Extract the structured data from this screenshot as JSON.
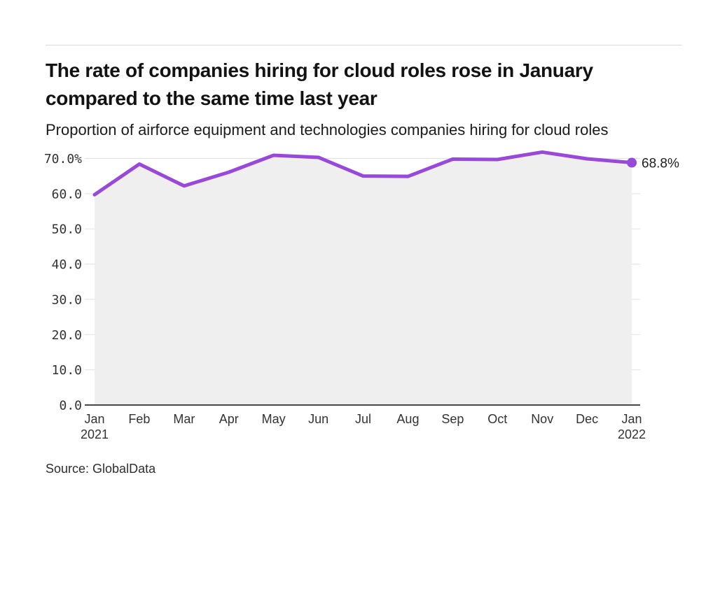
{
  "header": {
    "title": "The rate of companies hiring for cloud roles rose in January compared to the same time last year",
    "subtitle": "Proportion of airforce equipment and technologies companies hiring for cloud roles"
  },
  "footer": {
    "source": "Source: GlobalData"
  },
  "chart_data": {
    "type": "line",
    "title": "The rate of companies hiring for cloud roles rose in January compared to the same time last year",
    "subtitle": "Proportion of airforce equipment and technologies companies hiring for cloud roles",
    "categories": [
      "Jan",
      "Feb",
      "Mar",
      "Apr",
      "May",
      "Jun",
      "Jul",
      "Aug",
      "Sep",
      "Oct",
      "Nov",
      "Dec",
      "Jan"
    ],
    "category_year_labels": [
      {
        "index": 0,
        "year": "2021"
      },
      {
        "index": 12,
        "year": "2022"
      }
    ],
    "series": [
      {
        "name": "Proportion of companies hiring for cloud roles",
        "values": [
          59.7,
          68.4,
          62.2,
          66.1,
          70.9,
          70.3,
          65.0,
          64.9,
          69.8,
          69.7,
          71.8,
          69.9,
          68.8
        ]
      }
    ],
    "end_label": "68.8%",
    "ylim": [
      0,
      70
    ],
    "yticks": [
      0,
      10,
      20,
      30,
      40,
      50,
      60,
      70
    ],
    "ytick_labels": [
      "0.0",
      "10.0",
      "20.0",
      "30.0",
      "40.0",
      "50.0",
      "60.0",
      "70.0%"
    ],
    "xlabel": "",
    "ylabel": "",
    "grid": true,
    "legend": "none",
    "area_fill": true,
    "marker_on_last_point": true,
    "colors": {
      "line": "#9849db",
      "area": "#efefef",
      "grid": "#e2e2e2",
      "axis": "#474747",
      "tick_text": "#333333",
      "label_text": "#1f1f1f"
    }
  }
}
